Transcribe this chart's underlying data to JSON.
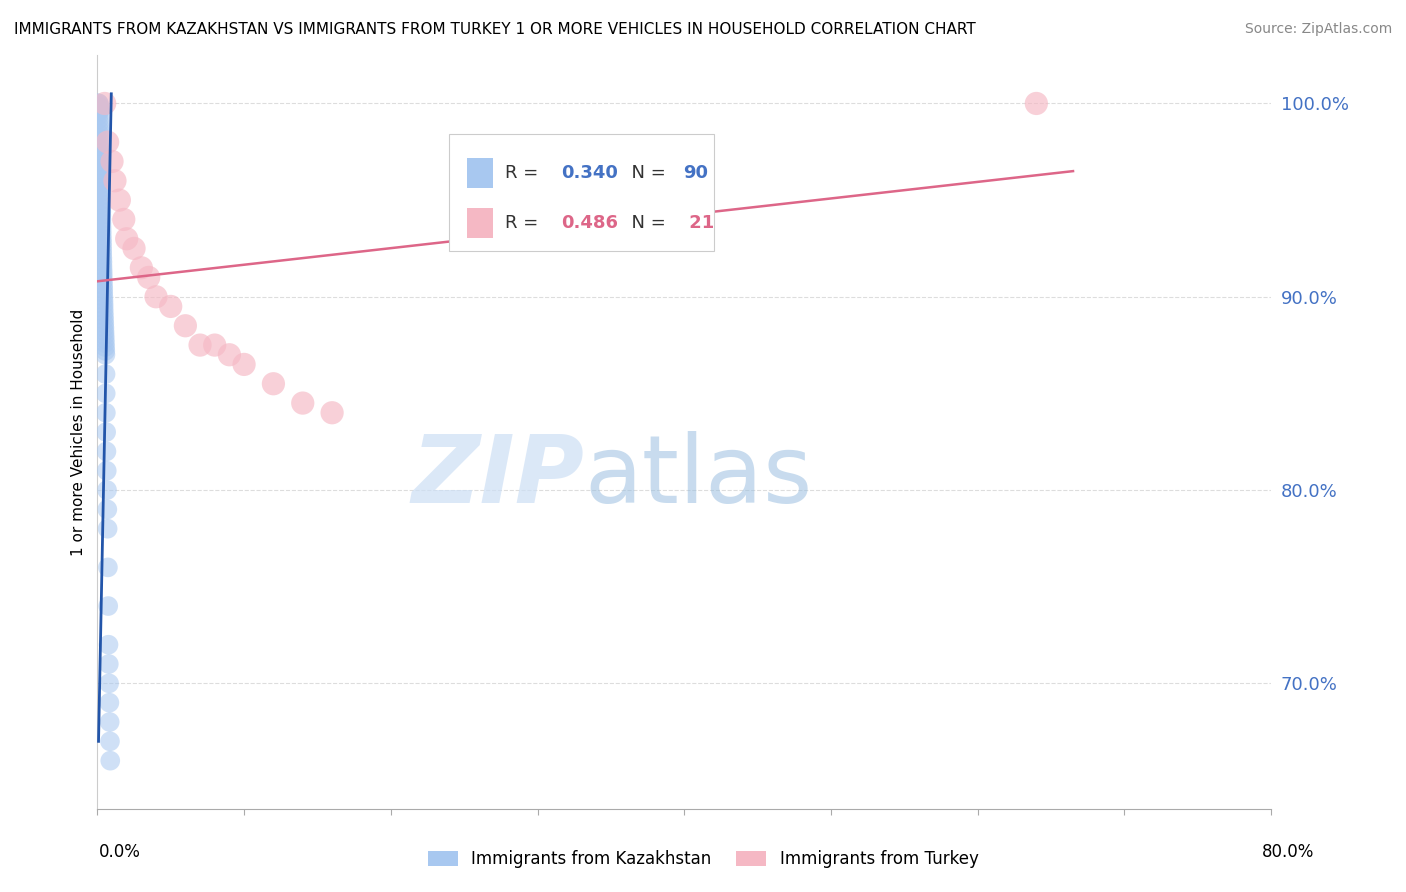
{
  "title": "IMMIGRANTS FROM KAZAKHSTAN VS IMMIGRANTS FROM TURKEY 1 OR MORE VEHICLES IN HOUSEHOLD CORRELATION CHART",
  "source": "Source: ZipAtlas.com",
  "ylabel": "1 or more Vehicles in Household",
  "right_ytick_values": [
    0.7,
    0.8,
    0.9,
    1.0
  ],
  "right_ytick_labels": [
    "70.0%",
    "80.0%",
    "90.0%",
    "100.0%"
  ],
  "R_blue": 0.34,
  "N_blue": 90,
  "R_pink": 0.486,
  "N_pink": 21,
  "blue_color": "#a8c8f0",
  "pink_color": "#f5b8c4",
  "blue_line_color": "#2255aa",
  "pink_line_color": "#dd6688",
  "watermark_color": "#ddeeff",
  "background_color": "#ffffff",
  "xmin": 0.0,
  "xmax": 0.8,
  "ymin": 0.635,
  "ymax": 1.025,
  "kazakhstan_x": [
    0.0008,
    0.001,
    0.001,
    0.001,
    0.0012,
    0.0012,
    0.0013,
    0.0013,
    0.0014,
    0.0015,
    0.0015,
    0.0016,
    0.0016,
    0.0017,
    0.0018,
    0.0018,
    0.0019,
    0.002,
    0.002,
    0.0021,
    0.0021,
    0.0022,
    0.0022,
    0.0023,
    0.0023,
    0.0024,
    0.0025,
    0.0025,
    0.0026,
    0.0027,
    0.0027,
    0.0028,
    0.0028,
    0.0029,
    0.003,
    0.003,
    0.0031,
    0.0032,
    0.0032,
    0.0033,
    0.0033,
    0.0034,
    0.0035,
    0.0035,
    0.0036,
    0.0037,
    0.0037,
    0.0038,
    0.0039,
    0.004,
    0.004,
    0.0041,
    0.0042,
    0.0043,
    0.0043,
    0.0044,
    0.0045,
    0.0046,
    0.0047,
    0.0048,
    0.0049,
    0.005,
    0.0051,
    0.0052,
    0.0053,
    0.0054,
    0.0055,
    0.0056,
    0.0057,
    0.0058,
    0.006,
    0.0062,
    0.0064,
    0.0066,
    0.0068,
    0.007,
    0.0072,
    0.0074,
    0.0076,
    0.0078,
    0.008,
    0.0082,
    0.0084,
    0.0086,
    0.0088,
    0.001,
    0.0011,
    0.0012,
    0.0013,
    0.0014
  ],
  "kazakhstan_y": [
    1.0,
    1.0,
    0.998,
    0.996,
    0.994,
    0.992,
    0.99,
    0.988,
    0.986,
    0.984,
    0.982,
    0.98,
    0.978,
    0.976,
    0.974,
    0.972,
    0.97,
    0.968,
    0.966,
    0.964,
    0.962,
    0.96,
    0.958,
    0.956,
    0.954,
    0.952,
    0.95,
    0.948,
    0.946,
    0.944,
    0.942,
    0.94,
    0.938,
    0.936,
    0.934,
    0.932,
    0.93,
    0.928,
    0.926,
    0.924,
    0.922,
    0.92,
    0.918,
    0.916,
    0.914,
    0.912,
    0.91,
    0.908,
    0.906,
    0.904,
    0.902,
    0.9,
    0.898,
    0.896,
    0.894,
    0.892,
    0.89,
    0.888,
    0.886,
    0.884,
    0.882,
    0.88,
    0.878,
    0.876,
    0.874,
    0.872,
    0.87,
    0.86,
    0.85,
    0.84,
    0.83,
    0.82,
    0.81,
    0.8,
    0.79,
    0.78,
    0.76,
    0.74,
    0.72,
    0.71,
    0.7,
    0.69,
    0.68,
    0.67,
    0.66,
    1.0,
    0.999,
    0.998,
    0.997,
    0.996
  ],
  "turkey_x": [
    0.005,
    0.007,
    0.01,
    0.012,
    0.015,
    0.018,
    0.02,
    0.025,
    0.03,
    0.035,
    0.04,
    0.05,
    0.06,
    0.07,
    0.08,
    0.09,
    0.1,
    0.12,
    0.14,
    0.16,
    0.64
  ],
  "turkey_y": [
    1.0,
    0.98,
    0.97,
    0.96,
    0.95,
    0.94,
    0.93,
    0.925,
    0.915,
    0.91,
    0.9,
    0.895,
    0.885,
    0.875,
    0.875,
    0.87,
    0.865,
    0.855,
    0.845,
    0.84,
    1.0
  ],
  "blue_line_x": [
    0.0008,
    0.0095
  ],
  "blue_line_y": [
    0.67,
    1.005
  ],
  "pink_line_x": [
    0.0,
    0.665
  ],
  "pink_line_y": [
    0.908,
    0.965
  ]
}
